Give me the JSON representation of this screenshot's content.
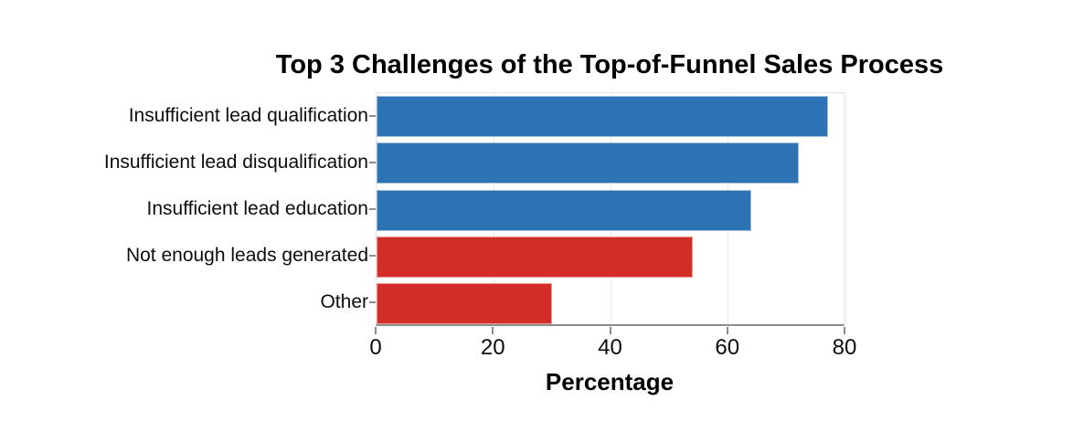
{
  "chart_data": {
    "type": "bar",
    "orientation": "horizontal",
    "title": "Top 3 Challenges of the Top-of-Funnel Sales Process",
    "xlabel": "Percentage",
    "ylabel": "",
    "categories": [
      "Insufficient lead qualification",
      "Insufficient lead disqualification",
      "Insufficient lead education",
      "Not enough leads generated",
      "Other"
    ],
    "values": [
      77,
      72,
      64,
      54,
      30
    ],
    "bar_colors": [
      "#2d73b4",
      "#2d73b4",
      "#2d73b4",
      "#d32d27",
      "#d32d27"
    ],
    "xlim": [
      0,
      80
    ],
    "xticks": [
      0,
      20,
      40,
      60,
      80
    ],
    "grid": true,
    "legend_position": "none"
  },
  "colors": {
    "blue_bar": "#2d73b4",
    "red_bar": "#d32d27",
    "axis_line": "#8c8c8c",
    "gridline": "#e8e8e8",
    "plot_border": "#e3e3e3",
    "text": "#000000",
    "background": "#ffffff"
  }
}
